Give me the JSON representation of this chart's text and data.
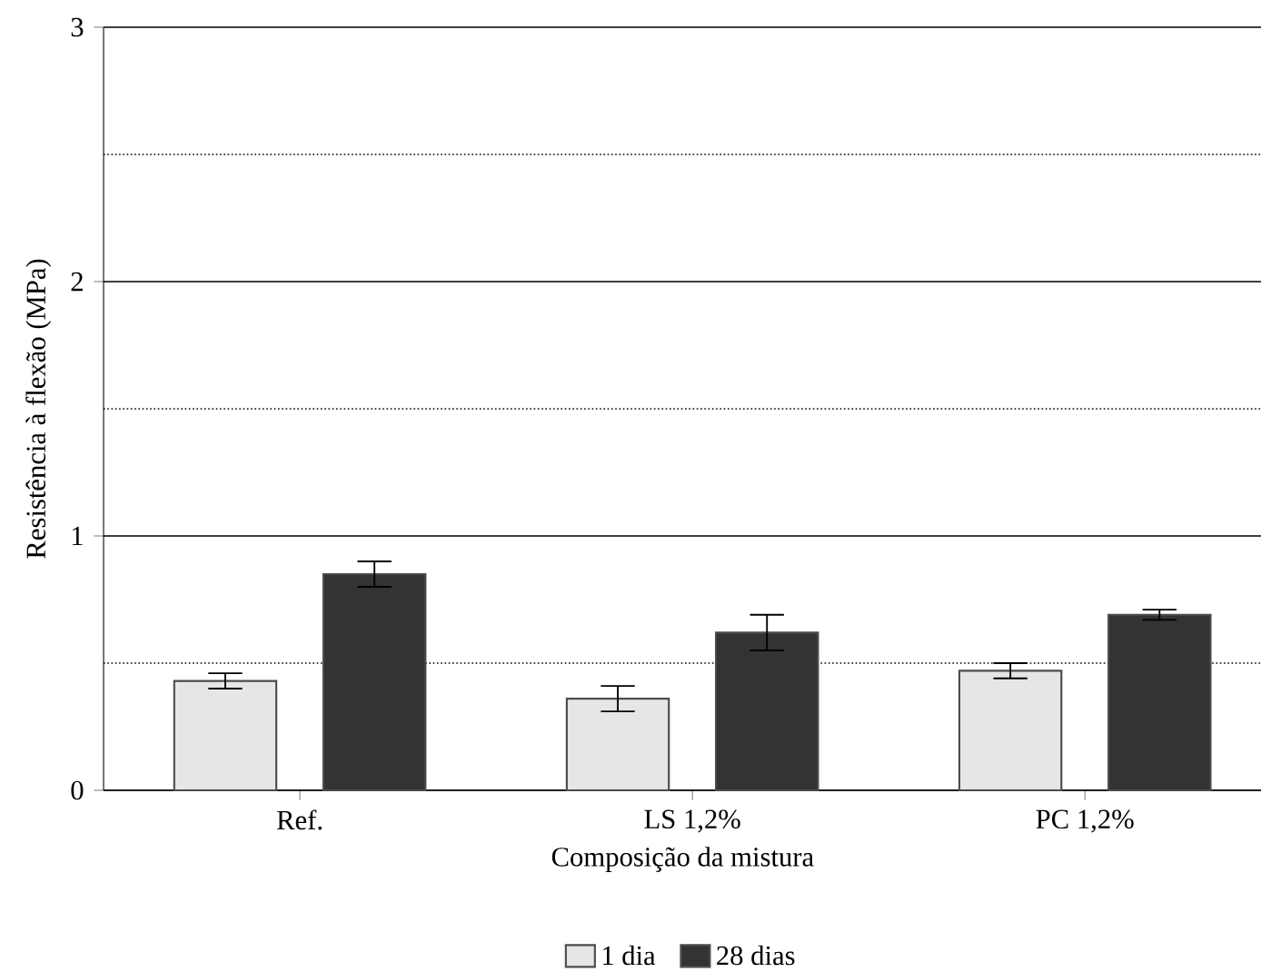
{
  "chart_data": {
    "type": "bar",
    "xlabel": "Composição da mistura",
    "ylabel": "Resistência à flexão (MPa)",
    "categories": [
      "Ref.",
      "LS 1,2%",
      "PC 1,2%"
    ],
    "series": [
      {
        "name": "1 dia",
        "color": "#e6e6e6",
        "values": [
          0.43,
          0.36,
          0.47
        ],
        "errors": [
          0.03,
          0.05,
          0.03
        ]
      },
      {
        "name": "28 dias",
        "color": "#333333",
        "values": [
          0.85,
          0.62,
          0.69
        ],
        "errors": [
          0.05,
          0.07,
          0.02
        ]
      }
    ],
    "ylim": [
      0,
      3
    ],
    "yticks": [
      0,
      {
        "value": 0.5,
        "label": null
      },
      1,
      {
        "value": 1.5,
        "label": null
      },
      2,
      {
        "value": 2.5,
        "label": null
      },
      3
    ],
    "grid": "y",
    "legend": "bottom"
  }
}
